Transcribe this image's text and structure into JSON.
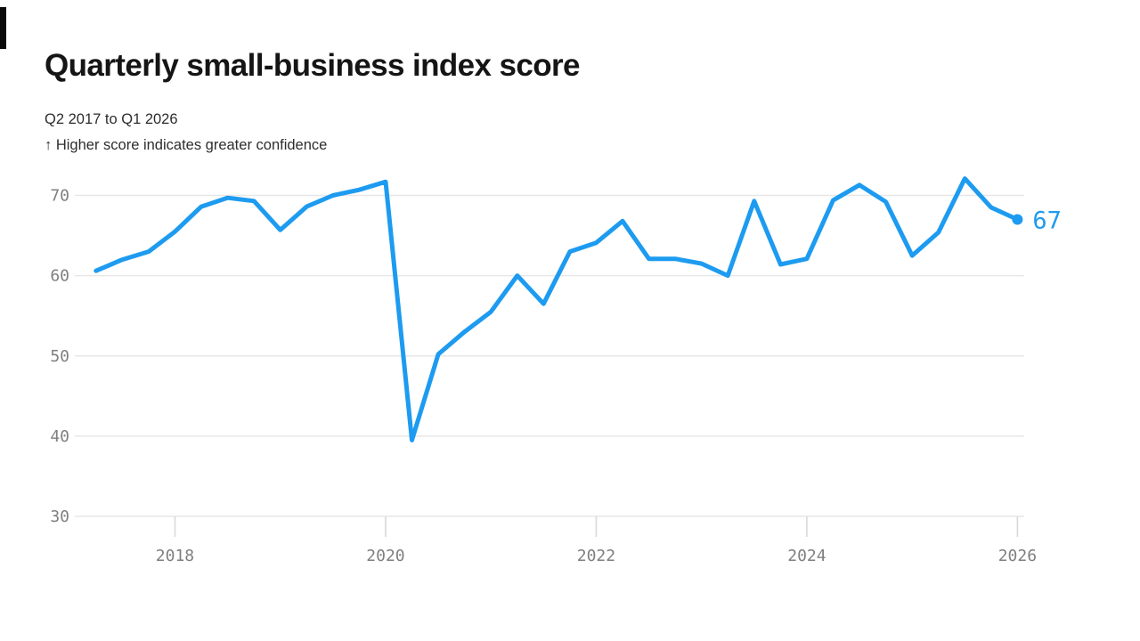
{
  "page": {
    "title": "Quarterly small-business index score",
    "subtitle": "Q2 2017 to Q1 2026",
    "note": "↑ Higher score indicates greater confidence"
  },
  "chart_data": {
    "type": "line",
    "title": "Quarterly small-business index score",
    "subtitle": "Q2 2017 to Q1 2026",
    "note": "↑ Higher score indicates greater confidence",
    "categories": [
      "Q2 2017",
      "Q3 2017",
      "Q4 2017",
      "Q1 2018",
      "Q2 2018",
      "Q3 2018",
      "Q4 2018",
      "Q1 2019",
      "Q2 2019",
      "Q3 2019",
      "Q4 2019",
      "Q1 2020",
      "Q2 2020",
      "Q3 2020",
      "Q4 2020",
      "Q1 2021",
      "Q2 2021",
      "Q3 2021",
      "Q4 2021",
      "Q1 2022",
      "Q2 2022",
      "Q3 2022",
      "Q4 2022",
      "Q1 2023",
      "Q2 2023",
      "Q3 2023",
      "Q4 2023",
      "Q1 2024",
      "Q2 2024",
      "Q3 2024",
      "Q4 2024",
      "Q1 2025",
      "Q2 2025",
      "Q3 2025",
      "Q4 2025",
      "Q1 2026"
    ],
    "values": [
      60.6,
      62.0,
      63.0,
      65.5,
      68.6,
      69.7,
      69.3,
      65.7,
      68.6,
      70.0,
      70.7,
      71.7,
      39.5,
      50.2,
      53.0,
      55.5,
      60.0,
      56.5,
      63.0,
      64.1,
      66.8,
      62.1,
      62.1,
      61.5,
      60.0,
      69.3,
      61.4,
      62.1,
      69.4,
      71.3,
      69.2,
      62.5,
      65.4,
      72.1,
      68.5,
      67
    ],
    "y_ticks": [
      30,
      40,
      50,
      60,
      70
    ],
    "x_tick_labels": [
      "2018",
      "2020",
      "2022",
      "2024",
      "2026"
    ],
    "x_tick_years": [
      2018,
      2020,
      2022,
      2024,
      2026
    ],
    "ylim": [
      30,
      72.5
    ],
    "grid": "horizontal",
    "legend": "none",
    "line_color": "#1d9bf0",
    "grid_color": "#e7e7e7",
    "tick_color": "#d9d9d9",
    "axis_text_color": "#7f7f7f",
    "end_dot": true,
    "end_label": "67"
  }
}
